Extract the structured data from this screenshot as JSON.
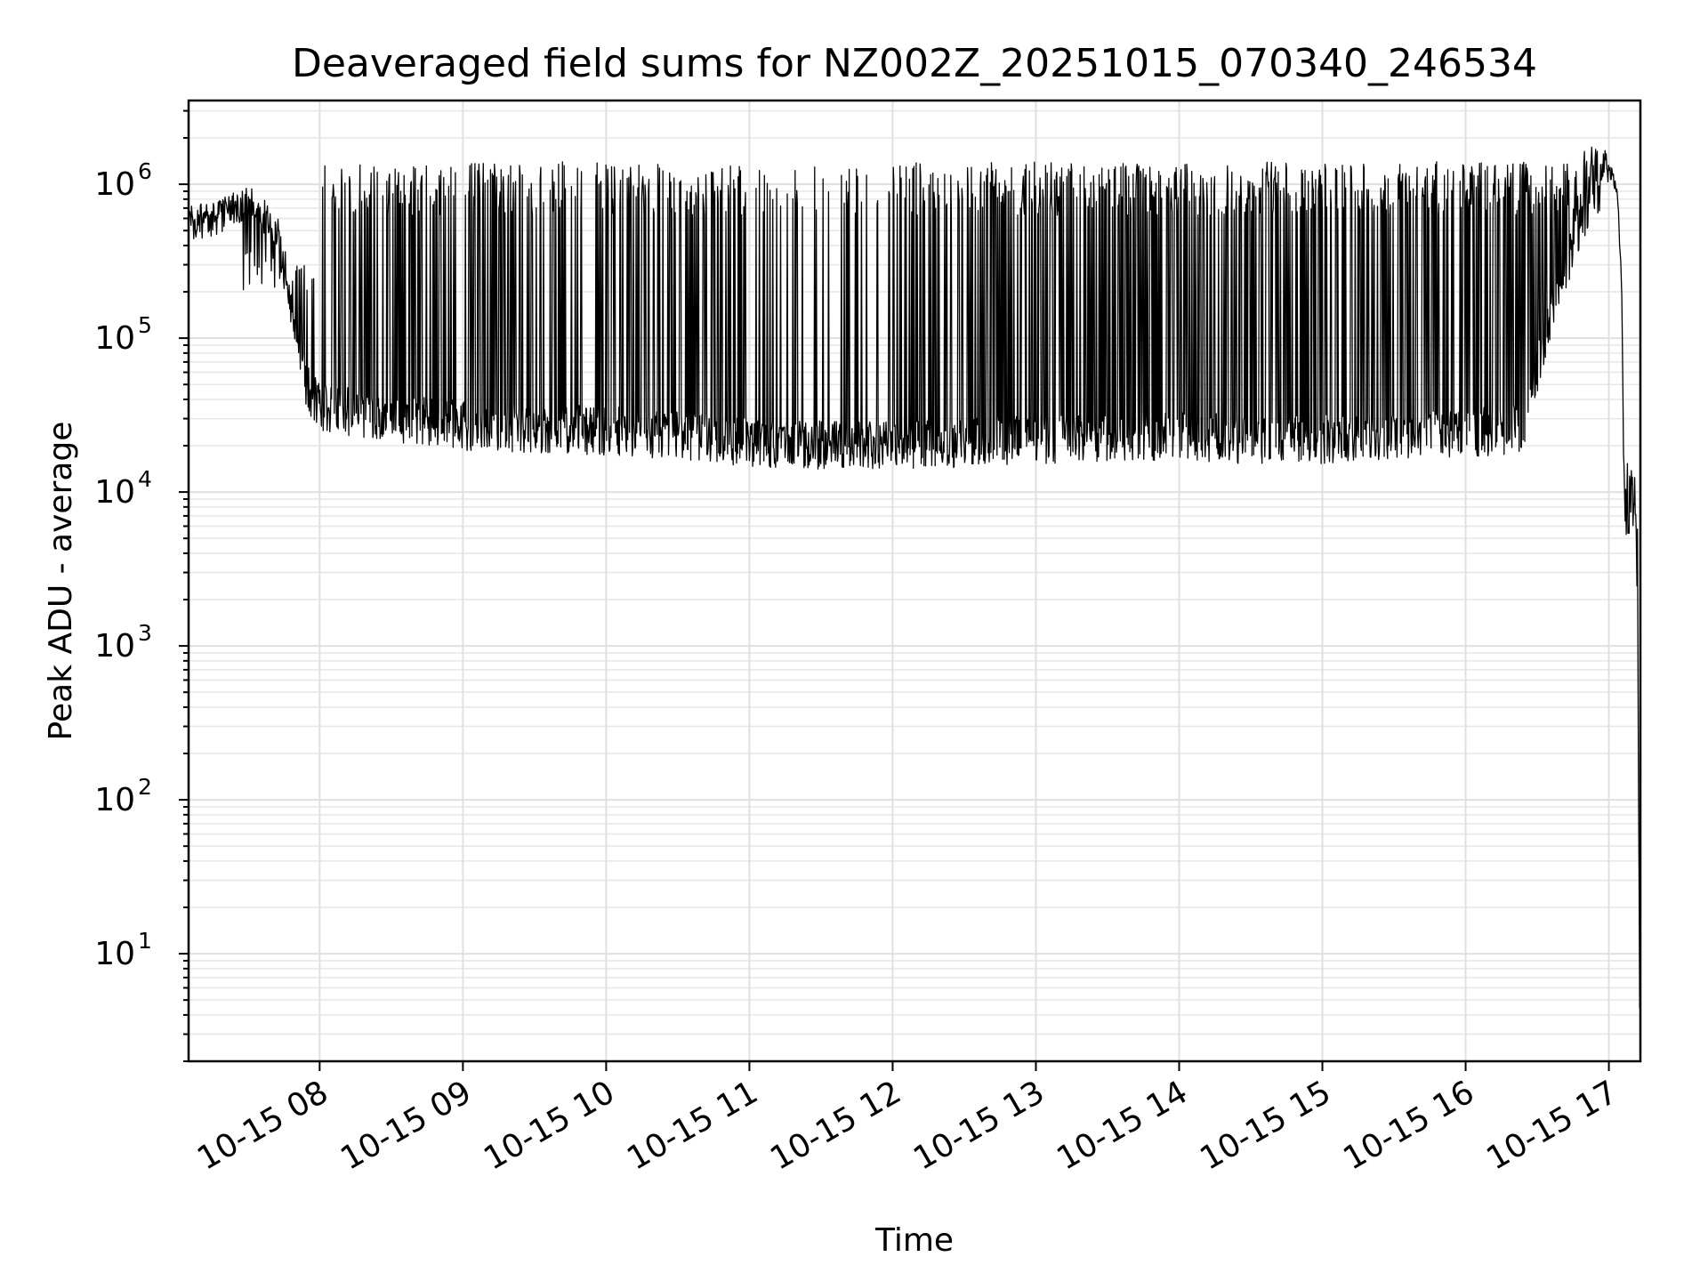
{
  "chart_data": {
    "type": "line",
    "title": "Deaveraged field sums for NZ002Z_20251015_070340_246534",
    "xlabel": "Time",
    "ylabel": "Peak ADU - average",
    "yscale": "log",
    "ylim": [
      2,
      3500000
    ],
    "xlim_hours": [
      7.085,
      17.22
    ],
    "grid": true,
    "x_ticks": [
      {
        "hour": 8,
        "label": "10-15 08"
      },
      {
        "hour": 9,
        "label": "10-15 09"
      },
      {
        "hour": 10,
        "label": "10-15 10"
      },
      {
        "hour": 11,
        "label": "10-15 11"
      },
      {
        "hour": 12,
        "label": "10-15 12"
      },
      {
        "hour": 13,
        "label": "10-15 13"
      },
      {
        "hour": 14,
        "label": "10-15 14"
      },
      {
        "hour": 15,
        "label": "10-15 15"
      },
      {
        "hour": 16,
        "label": "10-15 16"
      },
      {
        "hour": 17,
        "label": "10-15 17"
      }
    ],
    "y_ticks": [
      {
        "exp": 1,
        "base": "10",
        "sup": "1"
      },
      {
        "exp": 2,
        "base": "10",
        "sup": "2"
      },
      {
        "exp": 3,
        "base": "10",
        "sup": "3"
      },
      {
        "exp": 4,
        "base": "10",
        "sup": "4"
      },
      {
        "exp": 5,
        "base": "10",
        "sup": "5"
      },
      {
        "exp": 6,
        "base": "10",
        "sup": "6"
      }
    ],
    "series": [
      {
        "name": "Peak ADU - average",
        "color": "#000000",
        "baseline_keypoints": [
          [
            7.09,
            550000
          ],
          [
            7.3,
            600000
          ],
          [
            7.5,
            800000
          ],
          [
            7.7,
            500000
          ],
          [
            7.9,
            50000
          ],
          [
            8.0,
            35000
          ],
          [
            8.3,
            32000
          ],
          [
            8.6,
            30000
          ],
          [
            9.0,
            27000
          ],
          [
            9.5,
            26000
          ],
          [
            10.0,
            25000
          ],
          [
            10.5,
            23000
          ],
          [
            11.0,
            21000
          ],
          [
            11.5,
            20000
          ],
          [
            12.0,
            20000
          ],
          [
            12.5,
            21000
          ],
          [
            13.0,
            22000
          ],
          [
            13.5,
            23000
          ],
          [
            14.0,
            23000
          ],
          [
            14.5,
            22000
          ],
          [
            15.0,
            22000
          ],
          [
            15.5,
            23000
          ],
          [
            16.0,
            24000
          ],
          [
            16.4,
            26000
          ],
          [
            16.5,
            60000
          ],
          [
            16.6,
            150000
          ],
          [
            16.7,
            300000
          ],
          [
            16.8,
            500000
          ],
          [
            16.9,
            800000
          ],
          [
            16.97,
            1100000
          ],
          [
            17.02,
            1200000
          ],
          [
            17.06,
            900000
          ],
          [
            17.09,
            200000
          ],
          [
            17.1,
            30000
          ],
          [
            17.11,
            10000
          ],
          [
            17.18,
            8000
          ],
          [
            17.2,
            3000
          ],
          [
            17.215,
            4
          ]
        ],
        "spikes": {
          "start_hour": 7.45,
          "end_hour": 16.95,
          "peak_value": 1100000,
          "low_activity_gap_hours": [
            11.0,
            12.0
          ]
        }
      }
    ]
  }
}
